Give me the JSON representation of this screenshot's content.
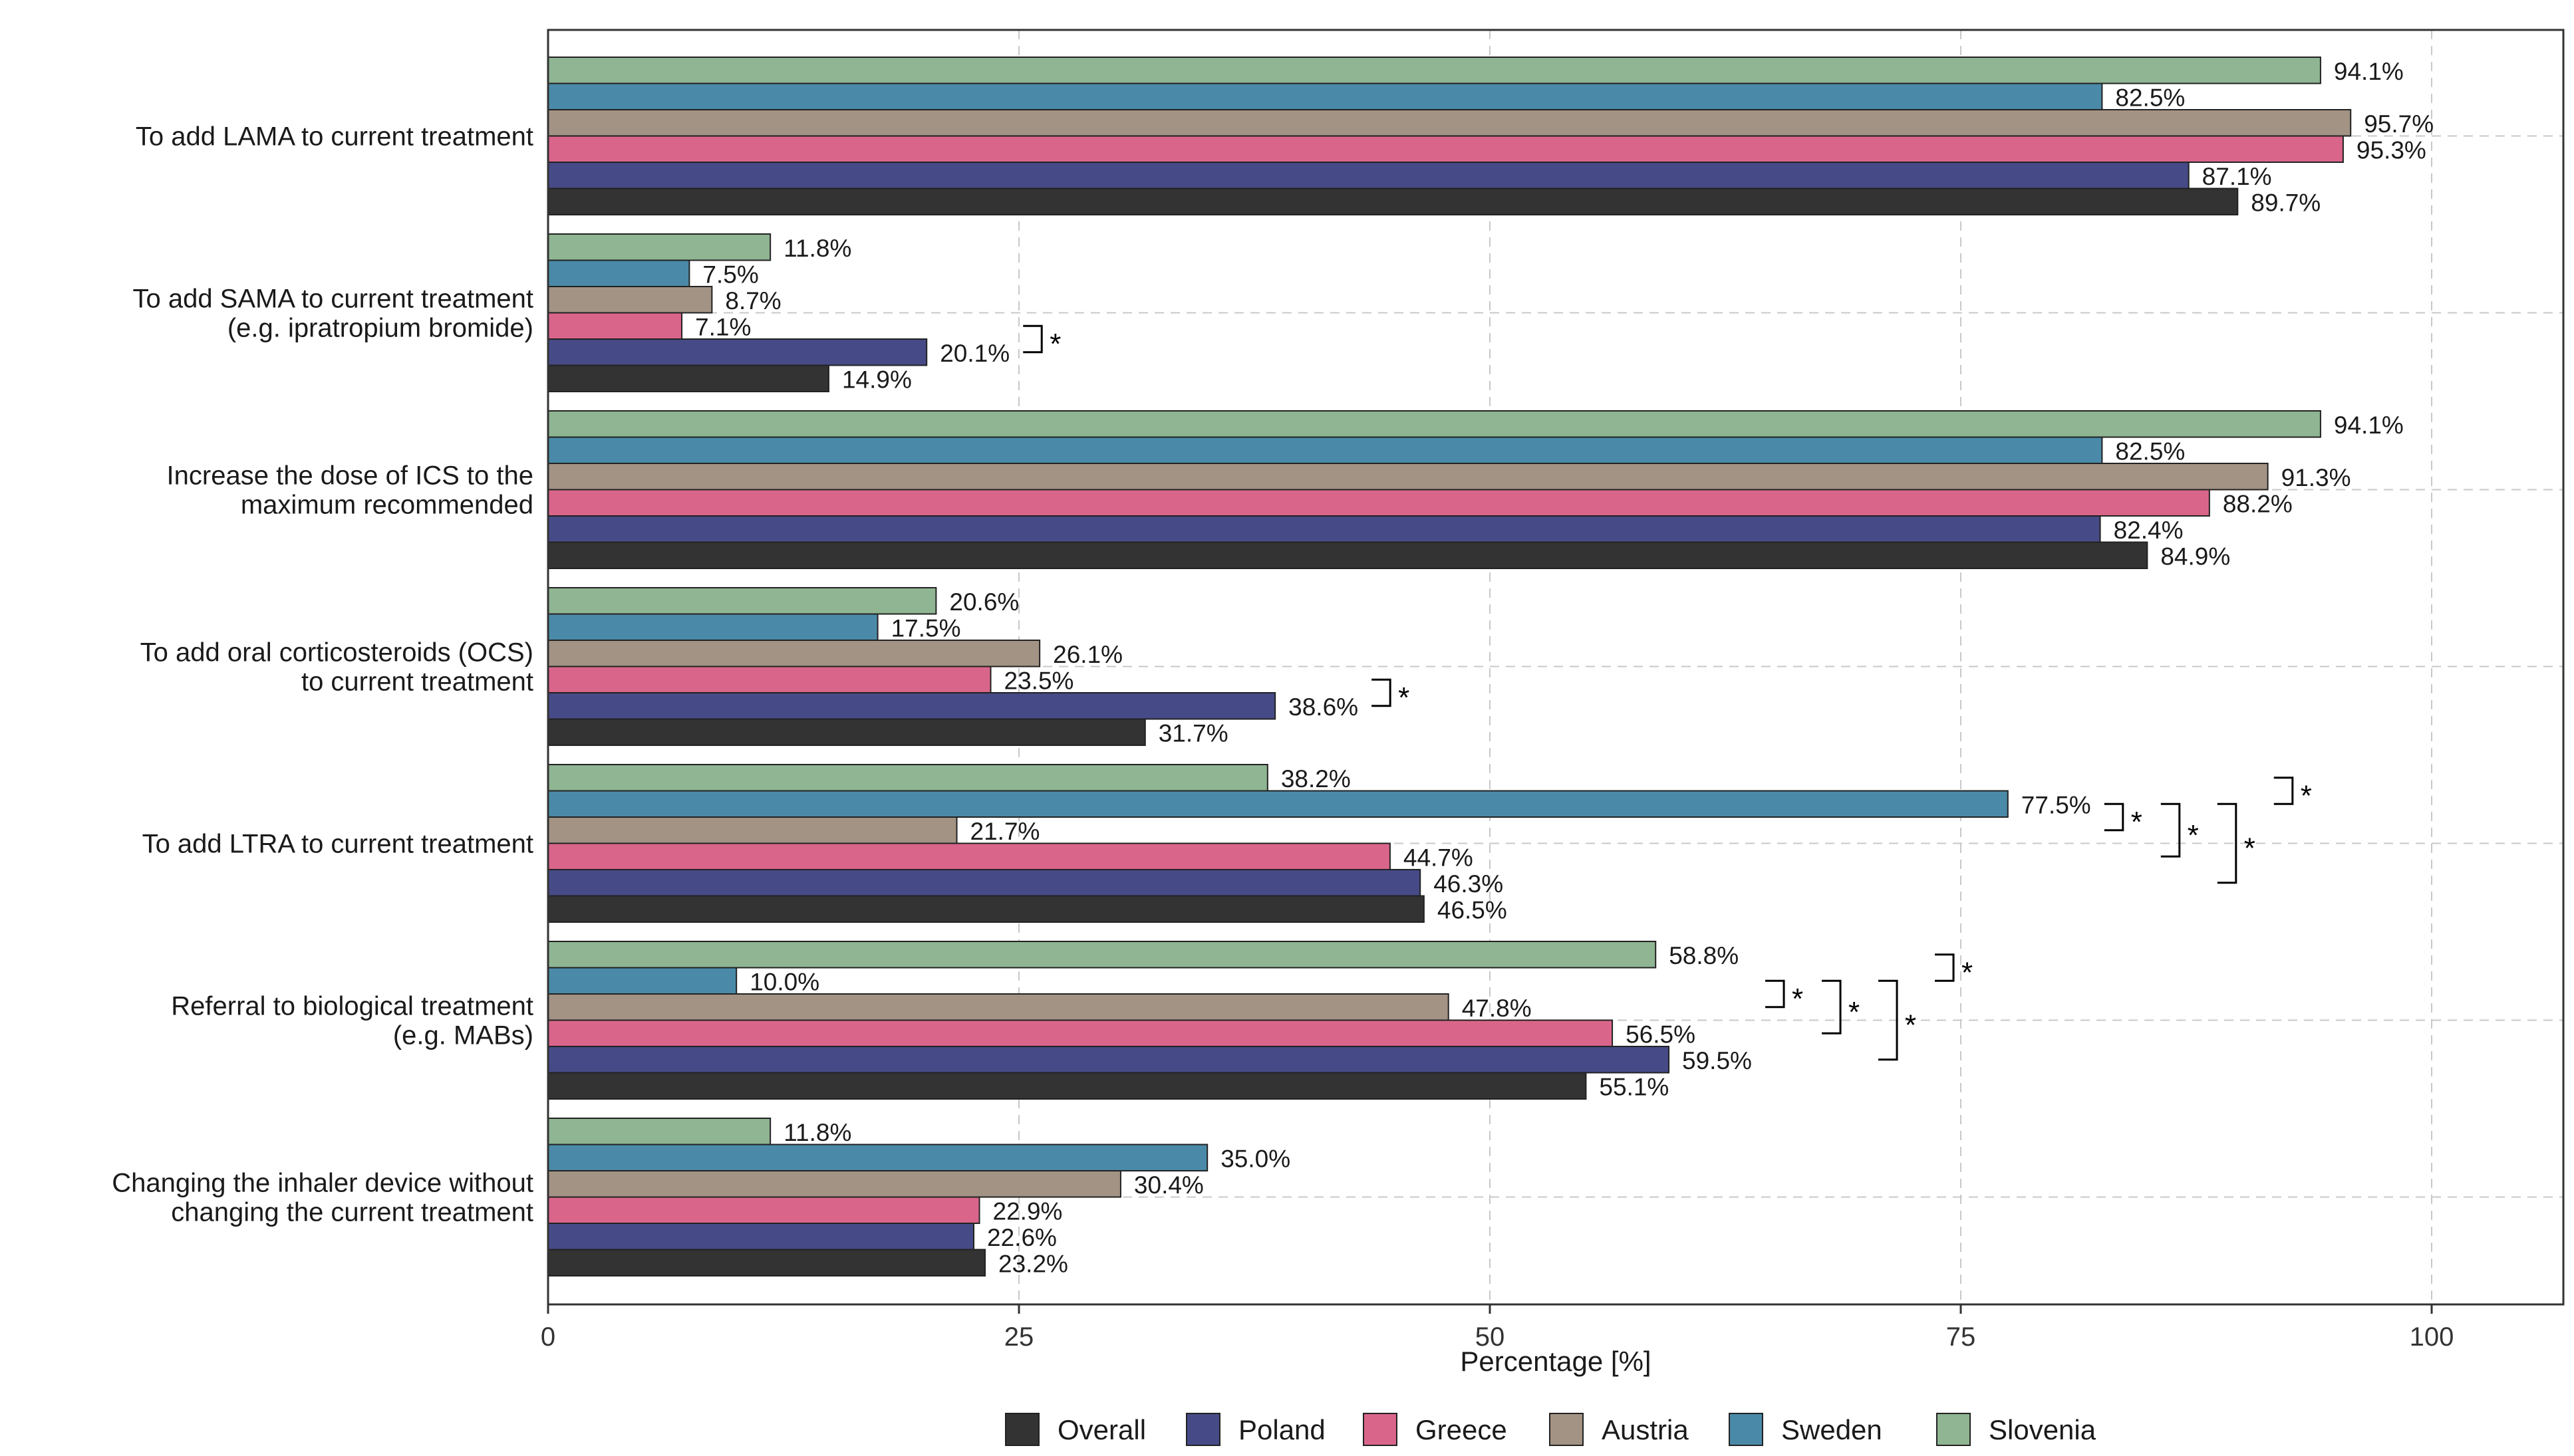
{
  "chart_data": {
    "type": "bar",
    "orientation": "horizontal",
    "title": "",
    "xlabel": "Percentage [%]",
    "ylabel": "",
    "xlim": [
      0,
      107
    ],
    "ticks": [
      0,
      25,
      50,
      75,
      100
    ],
    "grid": true,
    "legend_position": "bottom",
    "categories": [
      "To add LAMA to current treatment",
      "To add SAMA to current treatment\n(e.g. ipratropium bromide)",
      "Increase the dose of ICS to the\nmaximum recommended",
      "To add oral corticosteroids (OCS)\nto current treatment",
      "To add LTRA to current treatment",
      "Referral to biological treatment\n(e.g. MABs)",
      "Changing the inhaler device without\nchanging the current treatment"
    ],
    "series": [
      {
        "name": "Slovenia",
        "color": "#8fb592",
        "values": [
          94.1,
          11.8,
          94.1,
          20.6,
          38.2,
          58.8,
          11.8
        ],
        "labels": [
          "94.1%",
          "11.8%",
          "94.1%",
          "20.6%",
          "38.2%",
          "58.8%",
          "11.8%"
        ]
      },
      {
        "name": "Sweden",
        "color": "#4a8aa8",
        "values": [
          82.5,
          7.5,
          82.5,
          17.5,
          77.5,
          10.0,
          35.0
        ],
        "labels": [
          "82.5%",
          "7.5%",
          "82.5%",
          "17.5%",
          "77.5%",
          "10.0%",
          "35.0%"
        ]
      },
      {
        "name": "Austria",
        "color": "#a39384",
        "values": [
          95.7,
          8.7,
          91.3,
          26.1,
          21.7,
          47.8,
          30.4
        ],
        "labels": [
          "95.7%",
          "8.7%",
          "91.3%",
          "26.1%",
          "21.7%",
          "47.8%",
          "30.4%"
        ]
      },
      {
        "name": "Greece",
        "color": "#d9668a",
        "values": [
          95.3,
          7.1,
          88.2,
          23.5,
          44.7,
          56.5,
          22.9
        ],
        "labels": [
          "95.3%",
          "7.1%",
          "88.2%",
          "23.5%",
          "44.7%",
          "56.5%",
          "22.9%"
        ]
      },
      {
        "name": "Poland",
        "color": "#464a86",
        "values": [
          87.1,
          20.1,
          82.4,
          38.6,
          46.3,
          59.5,
          22.6
        ],
        "labels": [
          "87.1%",
          "20.1%",
          "82.4%",
          "38.6%",
          "46.3%",
          "59.5%",
          "22.6%"
        ]
      },
      {
        "name": "Overall",
        "color": "#333333",
        "values": [
          89.7,
          14.9,
          84.9,
          31.7,
          46.5,
          55.1,
          23.2
        ],
        "labels": [
          "89.7%",
          "14.9%",
          "84.9%",
          "31.7%",
          "46.5%",
          "55.1%",
          "23.2%"
        ]
      }
    ],
    "legend": [
      "Overall",
      "Poland",
      "Greece",
      "Austria",
      "Sweden",
      "Slovenia"
    ],
    "significance": [
      {
        "category": 1,
        "between": [
          "Greece",
          "Poland"
        ],
        "label": "*"
      },
      {
        "category": 3,
        "between": [
          "Greece",
          "Poland"
        ],
        "label": "*"
      },
      {
        "category": 4,
        "between": [
          "Slovenia",
          "Sweden"
        ],
        "label": "*"
      },
      {
        "category": 4,
        "between": [
          "Sweden",
          "Austria"
        ],
        "label": "*"
      },
      {
        "category": 4,
        "between": [
          "Sweden",
          "Greece"
        ],
        "label": "*"
      },
      {
        "category": 4,
        "between": [
          "Sweden",
          "Poland"
        ],
        "label": "*"
      },
      {
        "category": 5,
        "between": [
          "Slovenia",
          "Sweden"
        ],
        "label": "*"
      },
      {
        "category": 5,
        "between": [
          "Sweden",
          "Austria"
        ],
        "label": "*"
      },
      {
        "category": 5,
        "between": [
          "Sweden",
          "Greece"
        ],
        "label": "*"
      },
      {
        "category": 5,
        "between": [
          "Sweden",
          "Poland"
        ],
        "label": "*"
      }
    ]
  }
}
